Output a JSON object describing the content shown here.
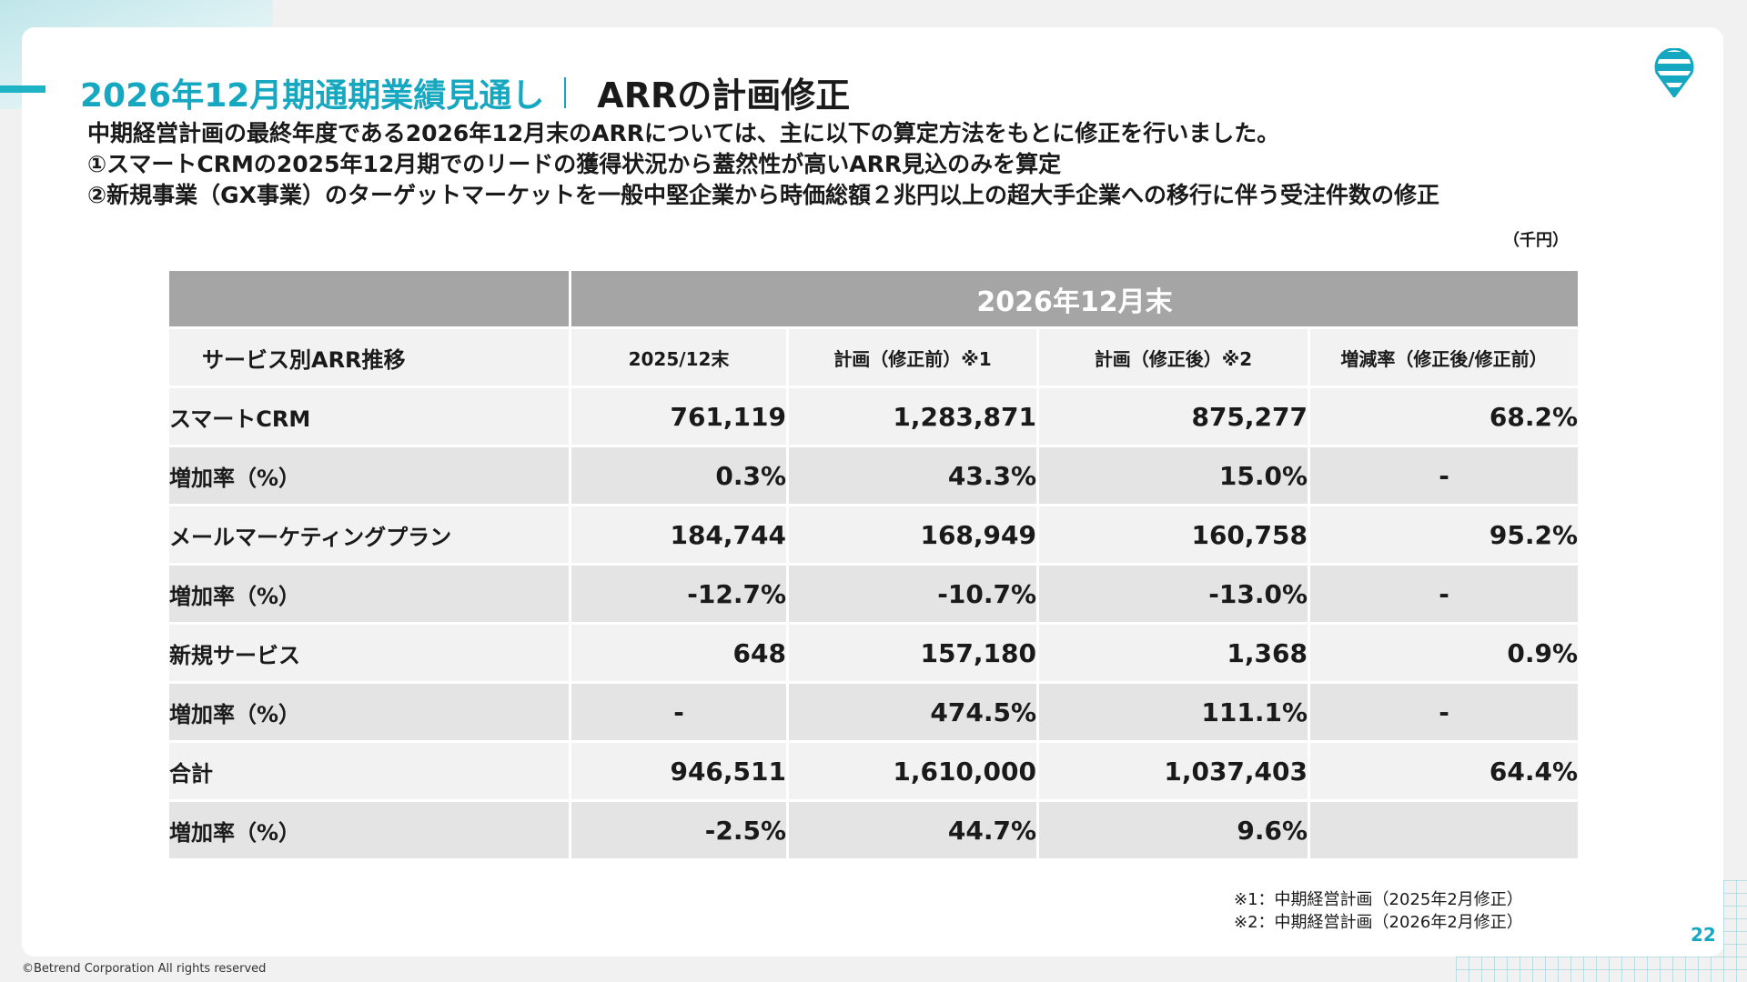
{
  "header": {
    "title_main": "2026年12月期通期業績見通し",
    "title_sub": "ARRの計画修正"
  },
  "intro": [
    "中期経営計画の最終年度である2026年12月末のARRについては、主に以下の算定方法をもとに修正を行いました。",
    "①スマートCRMの2025年12月期でのリードの獲得状況から蓋然性が高いARR見込のみを算定",
    "②新規事業（GX事業）のターゲットマーケットを一般中堅企業から時価総額２兆円以上の超大手企業への移行に伴う受注件数の修正"
  ],
  "unit": "（千円）",
  "table": {
    "group_header": "2026年12月末",
    "columns": [
      "サービス別ARR推移",
      "2025/12末",
      "計画（修正前）※1",
      "計画（修正後）※2",
      "増減率（修正後/修正前）"
    ],
    "rows": [
      [
        "スマートCRM",
        "761,119",
        "1,283,871",
        "875,277",
        "68.2%"
      ],
      [
        "増加率（%）",
        "0.3%",
        "43.3%",
        "15.0%",
        "-"
      ],
      [
        "メールマーケティングプラン",
        "184,744",
        "168,949",
        "160,758",
        "95.2%"
      ],
      [
        "増加率（%）",
        "-12.7%",
        "-10.7%",
        "-13.0%",
        "-"
      ],
      [
        "新規サービス",
        "648",
        "157,180",
        "1,368",
        "0.9%"
      ],
      [
        "増加率（%）",
        "-",
        "474.5%",
        "111.1%",
        "-"
      ],
      [
        "合計",
        "946,511",
        "1,610,000",
        "1,037,403",
        "64.4%"
      ],
      [
        "増加率（%）",
        "-2.5%",
        "44.7%",
        "9.6%",
        ""
      ]
    ]
  },
  "notes": [
    "※1：中期経営計画（2025年2月修正）",
    "※2：中期経営計画（2026年2月修正）"
  ],
  "page_number": "22",
  "copyright": "©Betrend Corporation All rights reserved",
  "colors": {
    "accent": "#15a8c0",
    "header_gray": "#a5a5a5",
    "row_light": "#f2f2f2",
    "row_dark": "#e4e4e4"
  },
  "logo": {
    "icon": "striped-pin-logo"
  }
}
